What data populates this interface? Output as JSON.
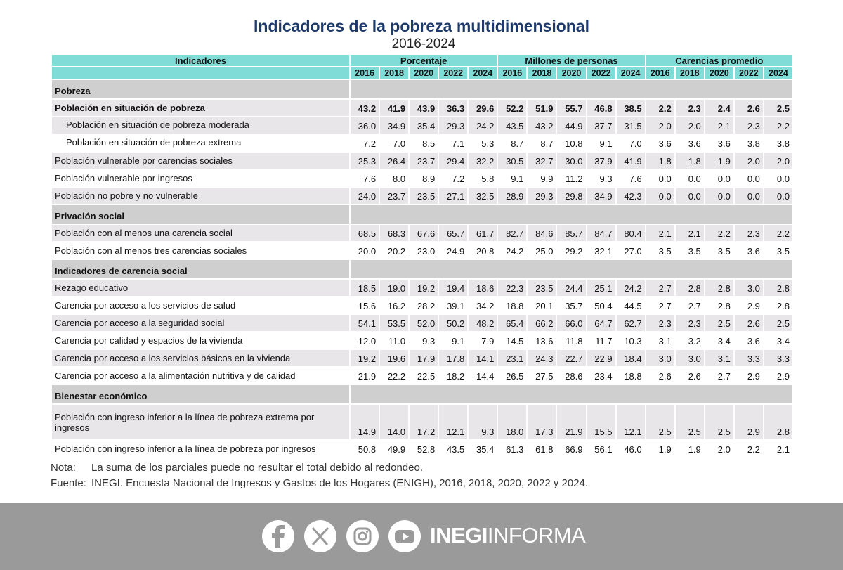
{
  "header": {
    "title": "Indicadores de la pobreza multidimensional",
    "subtitle": "2016-2024"
  },
  "table": {
    "indicator_header": "Indicadores",
    "groups": [
      {
        "name": "Porcentaje",
        "years": [
          "2016",
          "2018",
          "2020",
          "2022",
          "2024"
        ]
      },
      {
        "name": "Millones de personas",
        "years": [
          "2016",
          "2018",
          "2020",
          "2022",
          "2024"
        ]
      },
      {
        "name": "Carencias promedio",
        "years": [
          "2016",
          "2018",
          "2020",
          "2022",
          "2024"
        ]
      }
    ],
    "sections": [
      {
        "title": "Pobreza",
        "rows": [
          {
            "label": "Población en situación de pobreza",
            "values": [
              "43.2",
              "41.9",
              "43.9",
              "36.3",
              "29.6",
              "52.2",
              "51.9",
              "55.7",
              "46.8",
              "38.5",
              "2.2",
              "2.3",
              "2.4",
              "2.6",
              "2.5"
            ]
          },
          {
            "label": "Población en situación de pobreza moderada",
            "values": [
              "36.0",
              "34.9",
              "35.4",
              "29.3",
              "24.2",
              "43.5",
              "43.2",
              "44.9",
              "37.7",
              "31.5",
              "2.0",
              "2.0",
              "2.1",
              "2.3",
              "2.2"
            ]
          },
          {
            "label": "Población en situación de pobreza extrema",
            "values": [
              "7.2",
              "7.0",
              "8.5",
              "7.1",
              "5.3",
              "8.7",
              "8.7",
              "10.8",
              "9.1",
              "7.0",
              "3.6",
              "3.6",
              "3.6",
              "3.8",
              "3.8"
            ]
          },
          {
            "label": "Población vulnerable por carencias sociales",
            "values": [
              "25.3",
              "26.4",
              "23.7",
              "29.4",
              "32.2",
              "30.5",
              "32.7",
              "30.0",
              "37.9",
              "41.9",
              "1.8",
              "1.8",
              "1.9",
              "2.0",
              "2.0"
            ]
          },
          {
            "label": "Población vulnerable por ingresos",
            "values": [
              "7.6",
              "8.0",
              "8.9",
              "7.2",
              "5.8",
              "9.1",
              "9.9",
              "11.2",
              "9.3",
              "7.6",
              "0.0",
              "0.0",
              "0.0",
              "0.0",
              "0.0"
            ]
          },
          {
            "label": "Población no pobre y no vulnerable",
            "values": [
              "24.0",
              "23.7",
              "23.5",
              "27.1",
              "32.5",
              "28.9",
              "29.3",
              "29.8",
              "34.9",
              "42.3",
              "0.0",
              "0.0",
              "0.0",
              "0.0",
              "0.0"
            ]
          }
        ]
      },
      {
        "title": "Privación social",
        "rows": [
          {
            "label": "Población con al menos una carencia social",
            "values": [
              "68.5",
              "68.3",
              "67.6",
              "65.7",
              "61.7",
              "82.7",
              "84.6",
              "85.7",
              "84.7",
              "80.4",
              "2.1",
              "2.1",
              "2.2",
              "2.3",
              "2.2"
            ]
          },
          {
            "label": "Población con al menos tres carencias sociales",
            "values": [
              "20.0",
              "20.2",
              "23.0",
              "24.9",
              "20.8",
              "24.2",
              "25.0",
              "29.2",
              "32.1",
              "27.0",
              "3.5",
              "3.5",
              "3.5",
              "3.6",
              "3.5"
            ]
          }
        ]
      },
      {
        "title": "Indicadores de carencia social",
        "rows": [
          {
            "label": "Rezago educativo",
            "values": [
              "18.5",
              "19.0",
              "19.2",
              "19.4",
              "18.6",
              "22.3",
              "23.5",
              "24.4",
              "25.1",
              "24.2",
              "2.7",
              "2.8",
              "2.8",
              "3.0",
              "2.8"
            ]
          },
          {
            "label": "Carencia por acceso a los servicios de salud",
            "values": [
              "15.6",
              "16.2",
              "28.2",
              "39.1",
              "34.2",
              "18.8",
              "20.1",
              "35.7",
              "50.4",
              "44.5",
              "2.7",
              "2.7",
              "2.8",
              "2.9",
              "2.8"
            ]
          },
          {
            "label": "Carencia por acceso a la seguridad social",
            "values": [
              "54.1",
              "53.5",
              "52.0",
              "50.2",
              "48.2",
              "65.4",
              "66.2",
              "66.0",
              "64.7",
              "62.7",
              "2.3",
              "2.3",
              "2.5",
              "2.6",
              "2.5"
            ]
          },
          {
            "label": "Carencia por calidad y espacios de la vivienda",
            "values": [
              "12.0",
              "11.0",
              "9.3",
              "9.1",
              "7.9",
              "14.5",
              "13.6",
              "11.8",
              "11.7",
              "10.3",
              "3.1",
              "3.2",
              "3.4",
              "3.6",
              "3.4"
            ]
          },
          {
            "label": "Carencia por acceso a los servicios básicos en la vivienda",
            "values": [
              "19.2",
              "19.6",
              "17.9",
              "17.8",
              "14.1",
              "23.1",
              "24.3",
              "22.7",
              "22.9",
              "18.4",
              "3.0",
              "3.0",
              "3.1",
              "3.3",
              "3.3"
            ]
          },
          {
            "label": "Carencia por acceso a la alimentación nutritiva y de calidad",
            "values": [
              "21.9",
              "22.2",
              "22.5",
              "18.2",
              "14.4",
              "26.5",
              "27.5",
              "28.6",
              "23.4",
              "18.8",
              "2.6",
              "2.6",
              "2.7",
              "2.9",
              "2.9"
            ]
          }
        ]
      },
      {
        "title": "Bienestar económico",
        "rows": [
          {
            "label": "Población con ingreso inferior a la línea de pobreza extrema por ingresos",
            "values": [
              "14.9",
              "14.0",
              "17.2",
              "12.1",
              "9.3",
              "18.0",
              "17.3",
              "21.9",
              "15.5",
              "12.1",
              "2.5",
              "2.5",
              "2.5",
              "2.9",
              "2.8"
            ]
          },
          {
            "label": "Población con ingreso inferior a la línea de pobreza por ingresos",
            "values": [
              "50.8",
              "49.9",
              "52.8",
              "43.5",
              "35.4",
              "61.3",
              "61.8",
              "66.9",
              "56.1",
              "46.0",
              "1.9",
              "1.9",
              "2.0",
              "2.2",
              "2.1"
            ]
          }
        ]
      }
    ]
  },
  "notes": {
    "note_key": "Nota:",
    "note_text": "La suma de los parciales puede no resultar el total debido al redondeo.",
    "source_key": "Fuente:",
    "source_text": "INEGI. Encuesta Nacional de Ingresos y Gastos de los Hogares (ENIGH), 2016, 2018, 2020, 2022 y 2024."
  },
  "footer": {
    "brand_bold": "INEGI",
    "brand_light": "INFORMA"
  }
}
